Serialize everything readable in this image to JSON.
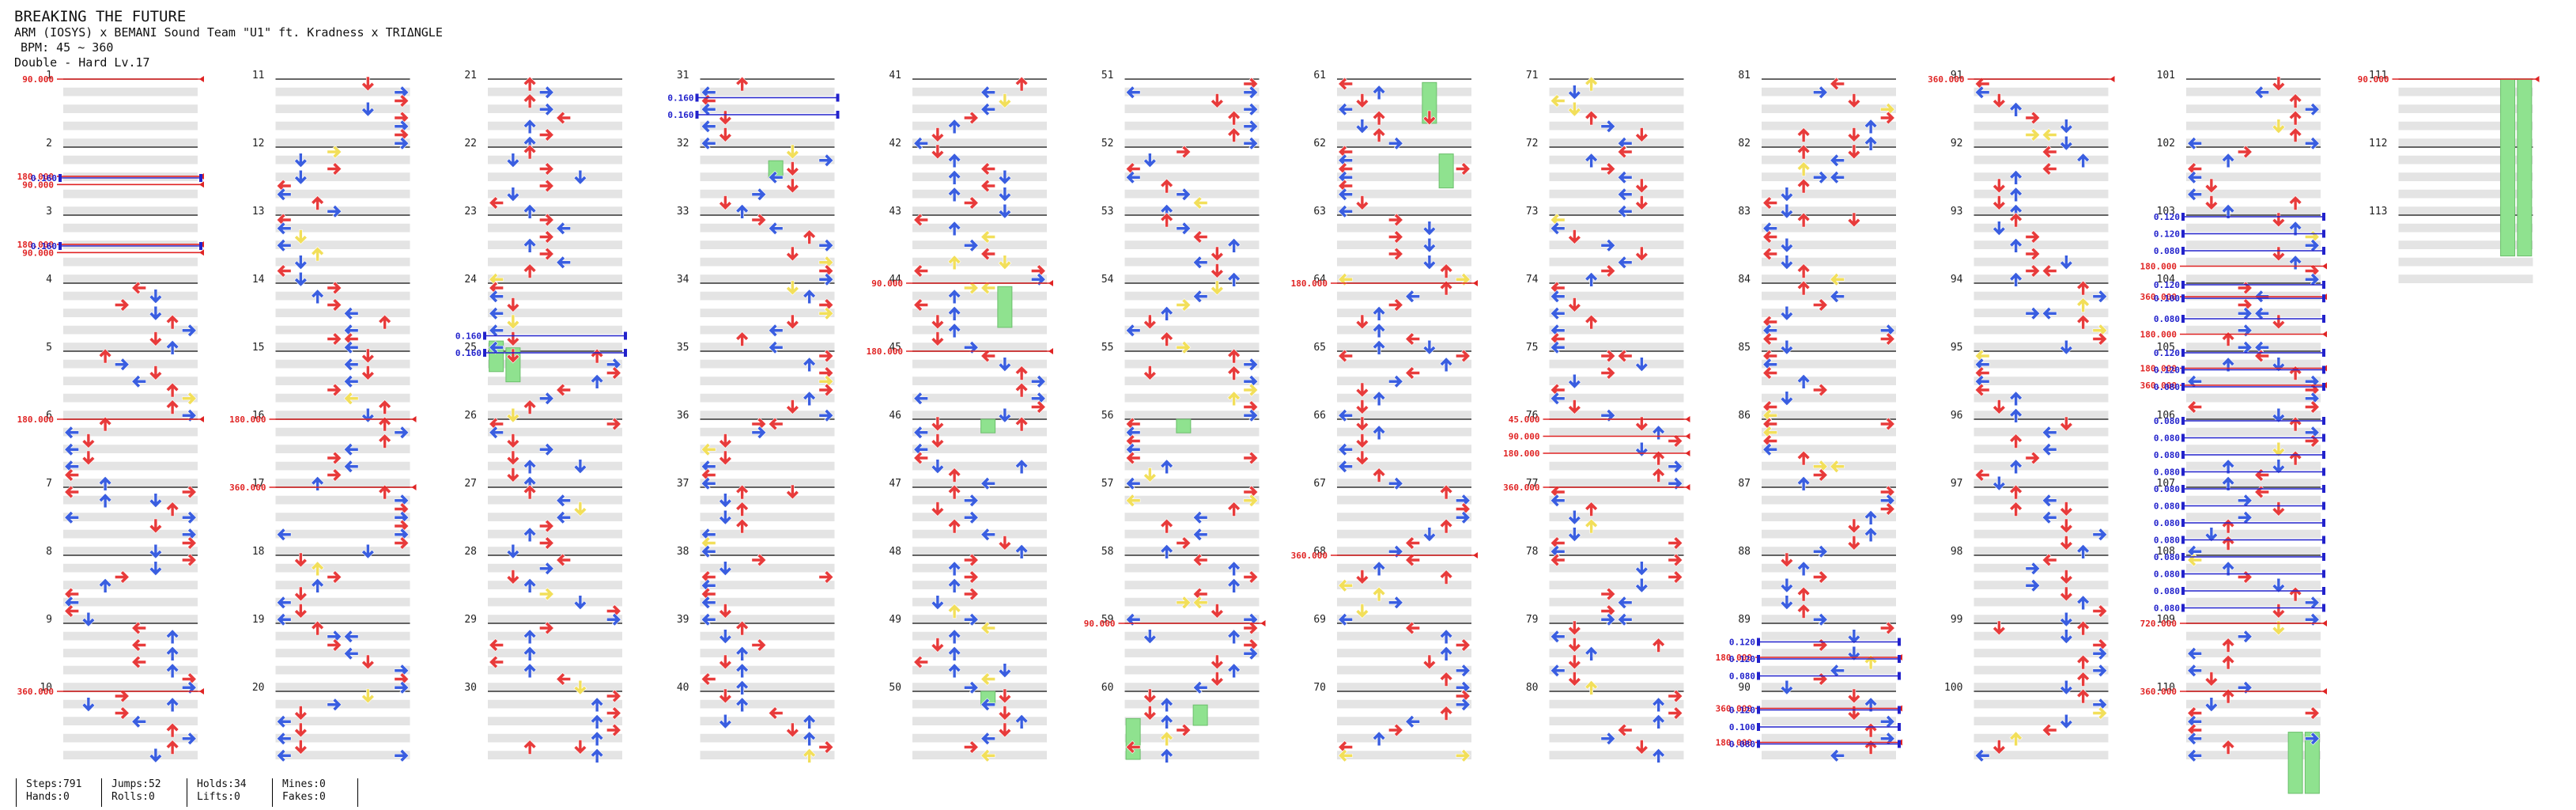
{
  "song": {
    "title": "BREAKING THE FUTURE",
    "artist": "ARM (IOSYS) x BEMANI Sound Team \"U1\" ft. Kradness x TRIΔNGLE",
    "bpm": "BPM: 45 ~ 360",
    "difficulty": "Double - Hard Lv.17"
  },
  "stats": [
    {
      "top": "Steps:791",
      "bottom": "Hands:0"
    },
    {
      "top": "Jumps:52",
      "bottom": "Rolls:0"
    },
    {
      "top": "Holds:34",
      "bottom": "Lifts:0"
    },
    {
      "top": "Mines:0",
      "bottom": "Fakes:0"
    }
  ],
  "measure_count": 113,
  "measures_per_column": 10,
  "columns": 12,
  "colors": {
    "quarter": "#e83b3b",
    "eighth": "#3a5ee0",
    "sixteenth": "#f2df5a",
    "twelfth": "#c040e8",
    "hold": "#8fe28f",
    "band": "#e4e4e4",
    "bpm": "#e02424",
    "stop": "#2222cc"
  },
  "bpm_markers": [
    {
      "m": 1,
      "f": 0,
      "t": "90.000"
    },
    {
      "m": 2,
      "f": 0.43,
      "t": "180.000"
    },
    {
      "m": 2,
      "f": 0.55,
      "t": "90.000"
    },
    {
      "m": 3,
      "f": 0.43,
      "t": "180.000"
    },
    {
      "m": 3,
      "f": 0.55,
      "t": "90.000"
    },
    {
      "m": 6,
      "f": 0,
      "t": "180.000"
    },
    {
      "m": 10,
      "f": 0,
      "t": "360.000"
    },
    {
      "m": 16,
      "f": 0,
      "t": "180.000"
    },
    {
      "m": 17,
      "f": 0,
      "t": "360.000"
    },
    {
      "m": 44,
      "f": 0,
      "t": "90.000"
    },
    {
      "m": 45,
      "f": 0,
      "t": "180.000"
    },
    {
      "m": 59,
      "f": 0,
      "t": "90.000"
    },
    {
      "m": 64,
      "f": 0,
      "t": "180.000"
    },
    {
      "m": 68,
      "f": 0,
      "t": "360.000"
    },
    {
      "m": 76,
      "f": 0,
      "t": "45.000"
    },
    {
      "m": 76,
      "f": 0.25,
      "t": "90.000"
    },
    {
      "m": 76,
      "f": 0.5,
      "t": "180.000"
    },
    {
      "m": 77,
      "f": 0,
      "t": "360.000"
    },
    {
      "m": 89,
      "f": 0.5,
      "t": "180.000"
    },
    {
      "m": 90,
      "f": 0.25,
      "t": "360.000"
    },
    {
      "m": 90,
      "f": 0.75,
      "t": "180.000"
    },
    {
      "m": 91,
      "f": 0,
      "t": "360.000"
    },
    {
      "m": 103,
      "f": 0.75,
      "t": "180.000"
    },
    {
      "m": 104,
      "f": 0.2,
      "t": "360.000"
    },
    {
      "m": 104,
      "f": 0.75,
      "t": "180.000"
    },
    {
      "m": 105,
      "f": 0.25,
      "t": "180.000"
    },
    {
      "m": 105,
      "f": 0.5,
      "t": "360.000"
    },
    {
      "m": 109,
      "f": 0,
      "t": "720.000"
    },
    {
      "m": 110,
      "f": 0,
      "t": "360.000"
    },
    {
      "m": 111,
      "f": 0,
      "t": "90.000"
    }
  ],
  "stop_markers": [
    {
      "m": 2,
      "f": 0.43,
      "t": "0.160"
    },
    {
      "m": 3,
      "f": 0.43,
      "t": "0.160"
    },
    {
      "m": 24,
      "f": 0.75,
      "t": "0.160"
    },
    {
      "m": 25,
      "f": 0,
      "t": "0.160"
    },
    {
      "m": 31,
      "f": 0.25,
      "t": "0.160"
    },
    {
      "m": 31,
      "f": 0.5,
      "t": "0.160"
    },
    {
      "m": 89,
      "f": 0.25,
      "t": "0.120"
    },
    {
      "m": 89,
      "f": 0.5,
      "t": "0.120"
    },
    {
      "m": 89,
      "f": 0.75,
      "t": "0.080"
    },
    {
      "m": 90,
      "f": 0.25,
      "t": "0.120"
    },
    {
      "m": 90,
      "f": 0.5,
      "t": "0.100"
    },
    {
      "m": 90,
      "f": 0.75,
      "t": "0.080"
    },
    {
      "m": 103,
      "f": 0,
      "t": "0.120"
    },
    {
      "m": 103,
      "f": 0.25,
      "t": "0.120"
    },
    {
      "m": 103,
      "f": 0.5,
      "t": "0.080"
    },
    {
      "m": 104,
      "f": 0,
      "t": "0.120"
    },
    {
      "m": 104,
      "f": 0.2,
      "t": "0.100"
    },
    {
      "m": 104,
      "f": 0.5,
      "t": "0.080"
    },
    {
      "m": 105,
      "f": 0,
      "t": "0.120"
    },
    {
      "m": 105,
      "f": 0.25,
      "t": "0.120"
    },
    {
      "m": 105,
      "f": 0.5,
      "t": "0.080"
    },
    {
      "m": 106,
      "f": 0,
      "t": "0.080"
    },
    {
      "m": 106,
      "f": 0.25,
      "t": "0.080"
    },
    {
      "m": 106,
      "f": 0.5,
      "t": "0.080"
    },
    {
      "m": 106,
      "f": 0.75,
      "t": "0.080"
    },
    {
      "m": 107,
      "f": 0,
      "t": "0.080"
    },
    {
      "m": 107,
      "f": 0.25,
      "t": "0.080"
    },
    {
      "m": 107,
      "f": 0.5,
      "t": "0.080"
    },
    {
      "m": 107,
      "f": 0.75,
      "t": "0.080"
    },
    {
      "m": 108,
      "f": 0,
      "t": "0.080"
    },
    {
      "m": 108,
      "f": 0.25,
      "t": "0.080"
    },
    {
      "m": 108,
      "f": 0.5,
      "t": "0.080"
    },
    {
      "m": 108,
      "f": 0.75,
      "t": "0.080"
    }
  ],
  "holds": [
    {
      "m": 24,
      "f": 0.85,
      "lane": 0,
      "len": 0.45
    },
    {
      "m": 24,
      "f": 0.95,
      "lane": 1,
      "len": 0.5
    },
    {
      "m": 32,
      "f": 0.2,
      "lane": 4,
      "len": 0.25
    },
    {
      "m": 44,
      "f": 0.05,
      "lane": 5,
      "len": 0.6
    },
    {
      "m": 61,
      "f": 0.05,
      "lane": 5,
      "len": 0.6
    },
    {
      "m": 62,
      "f": 0.1,
      "lane": 6,
      "len": 0.5
    },
    {
      "m": 46,
      "f": 0,
      "lane": 4,
      "len": 0.2
    },
    {
      "m": 50,
      "f": 0,
      "lane": 4,
      "len": 0.2
    },
    {
      "m": 56,
      "f": 0,
      "lane": 3,
      "len": 0.2
    },
    {
      "m": 60,
      "f": 0.4,
      "lane": 0,
      "len": 0.6
    },
    {
      "m": 60,
      "f": 0.2,
      "lane": 4,
      "len": 0.3
    },
    {
      "m": 111,
      "f": 0,
      "lane": 6,
      "len": 2.6
    },
    {
      "m": 111,
      "f": 0,
      "lane": 7,
      "len": 2.6
    },
    {
      "m": 110,
      "f": 0.6,
      "lane": 6,
      "len": 0.9
    },
    {
      "m": 110,
      "f": 0.6,
      "lane": 7,
      "len": 0.9
    }
  ],
  "arrow_seed": 20170417
}
